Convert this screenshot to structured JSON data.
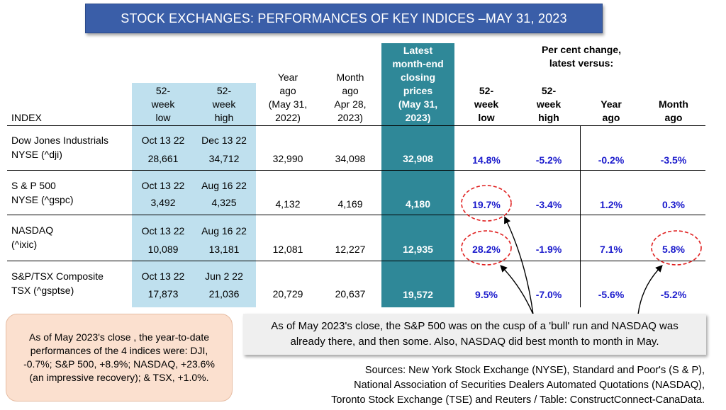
{
  "title": "STOCK EXCHANGES: PERFORMANCES OF KEY INDICES –MAY 31, 2023",
  "headers": {
    "index": "INDEX",
    "low52": [
      "52-",
      "week",
      "low"
    ],
    "high52": [
      "52-",
      "week",
      "high"
    ],
    "year_ago": [
      "Year",
      "ago",
      "(May 31,",
      "2022)"
    ],
    "month_ago": [
      "Month",
      "ago",
      "Apr 28,",
      "2023)"
    ],
    "latest": [
      "Latest",
      "month-end",
      "closing",
      "prices",
      "(May 31,",
      "2023)"
    ],
    "pct_change_title": [
      "Per cent change,",
      "latest versus:"
    ],
    "pct_low": [
      "52-",
      "week",
      "low"
    ],
    "pct_high": [
      "52-",
      "week",
      "high"
    ],
    "pct_year": [
      "Year",
      "ago"
    ],
    "pct_month": [
      "Month",
      "ago"
    ]
  },
  "rows": [
    {
      "name": "Dow Jones Industrials",
      "ticker": "NYSE (^dji)",
      "low_date": "Oct 13 22",
      "high_date": "Dec 13 22",
      "low": "28,661",
      "high": "34,712",
      "year_ago": "32,990",
      "month_ago": "34,098",
      "latest": "32,908",
      "pct_low": "14.8%",
      "pct_high": "-5.2%",
      "pct_year": "-0.2%",
      "pct_month": "-3.5%"
    },
    {
      "name": "S & P 500",
      "ticker": "NYSE (^gspc)",
      "low_date": "Oct 13 22",
      "high_date": "Aug 16 22",
      "low": "3,492",
      "high": "4,325",
      "year_ago": "4,132",
      "month_ago": "4,169",
      "latest": "4,180",
      "pct_low": "19.7%",
      "pct_high": "-3.4%",
      "pct_year": "1.2%",
      "pct_month": "0.3%"
    },
    {
      "name": "NASDAQ",
      "ticker": "(^ixic)",
      "low_date": "Oct 13 22",
      "high_date": "Aug 16 22",
      "low": "10,089",
      "high": "13,181",
      "year_ago": "12,081",
      "month_ago": "12,227",
      "latest": "12,935",
      "pct_low": "28.2%",
      "pct_high": "-1.9%",
      "pct_year": "7.1%",
      "pct_month": "5.8%"
    },
    {
      "name": "S&P/TSX Composite",
      "ticker": "TSX (^gsptse)",
      "low_date": "Oct 13 22",
      "high_date": "Jun 2 22",
      "low": "17,873",
      "high": "21,036",
      "year_ago": "20,729",
      "month_ago": "20,637",
      "latest": "19,572",
      "pct_low": "9.5%",
      "pct_high": "-7.0%",
      "pct_year": "-5.6%",
      "pct_month": "-5.2%"
    }
  ],
  "ytd_note": "As of May 2023's close , the year-to-date performances of the 4 indices were: DJI, -0.7%; S&P 500, +8.9%; NASDAQ, +23.6% (an impressive recovery); & TSX, +1.0%.",
  "bull_note": "As of May 2023's close, the S&P 500 was on the cusp of a 'bull' run and NASDAQ was already there, and then some. Also, NASDAQ did best month to month in May.",
  "sources": [
    "Sources: New York Stock Exchange (NYSE), Standard and Poor's (S & P),",
    "National Association of Securities Dealers Automated Quotations (NASDAQ),",
    "Toronto Stock Exchange (TSE) and Reuters / Table: ConstructConnect-CanaData."
  ],
  "colors": {
    "title_bg": "#3a5ea8",
    "highlight_col": "#bfe0ee",
    "latest_col": "#2f8898",
    "pct_text": "#1a1acc",
    "circle": "#e02020"
  }
}
